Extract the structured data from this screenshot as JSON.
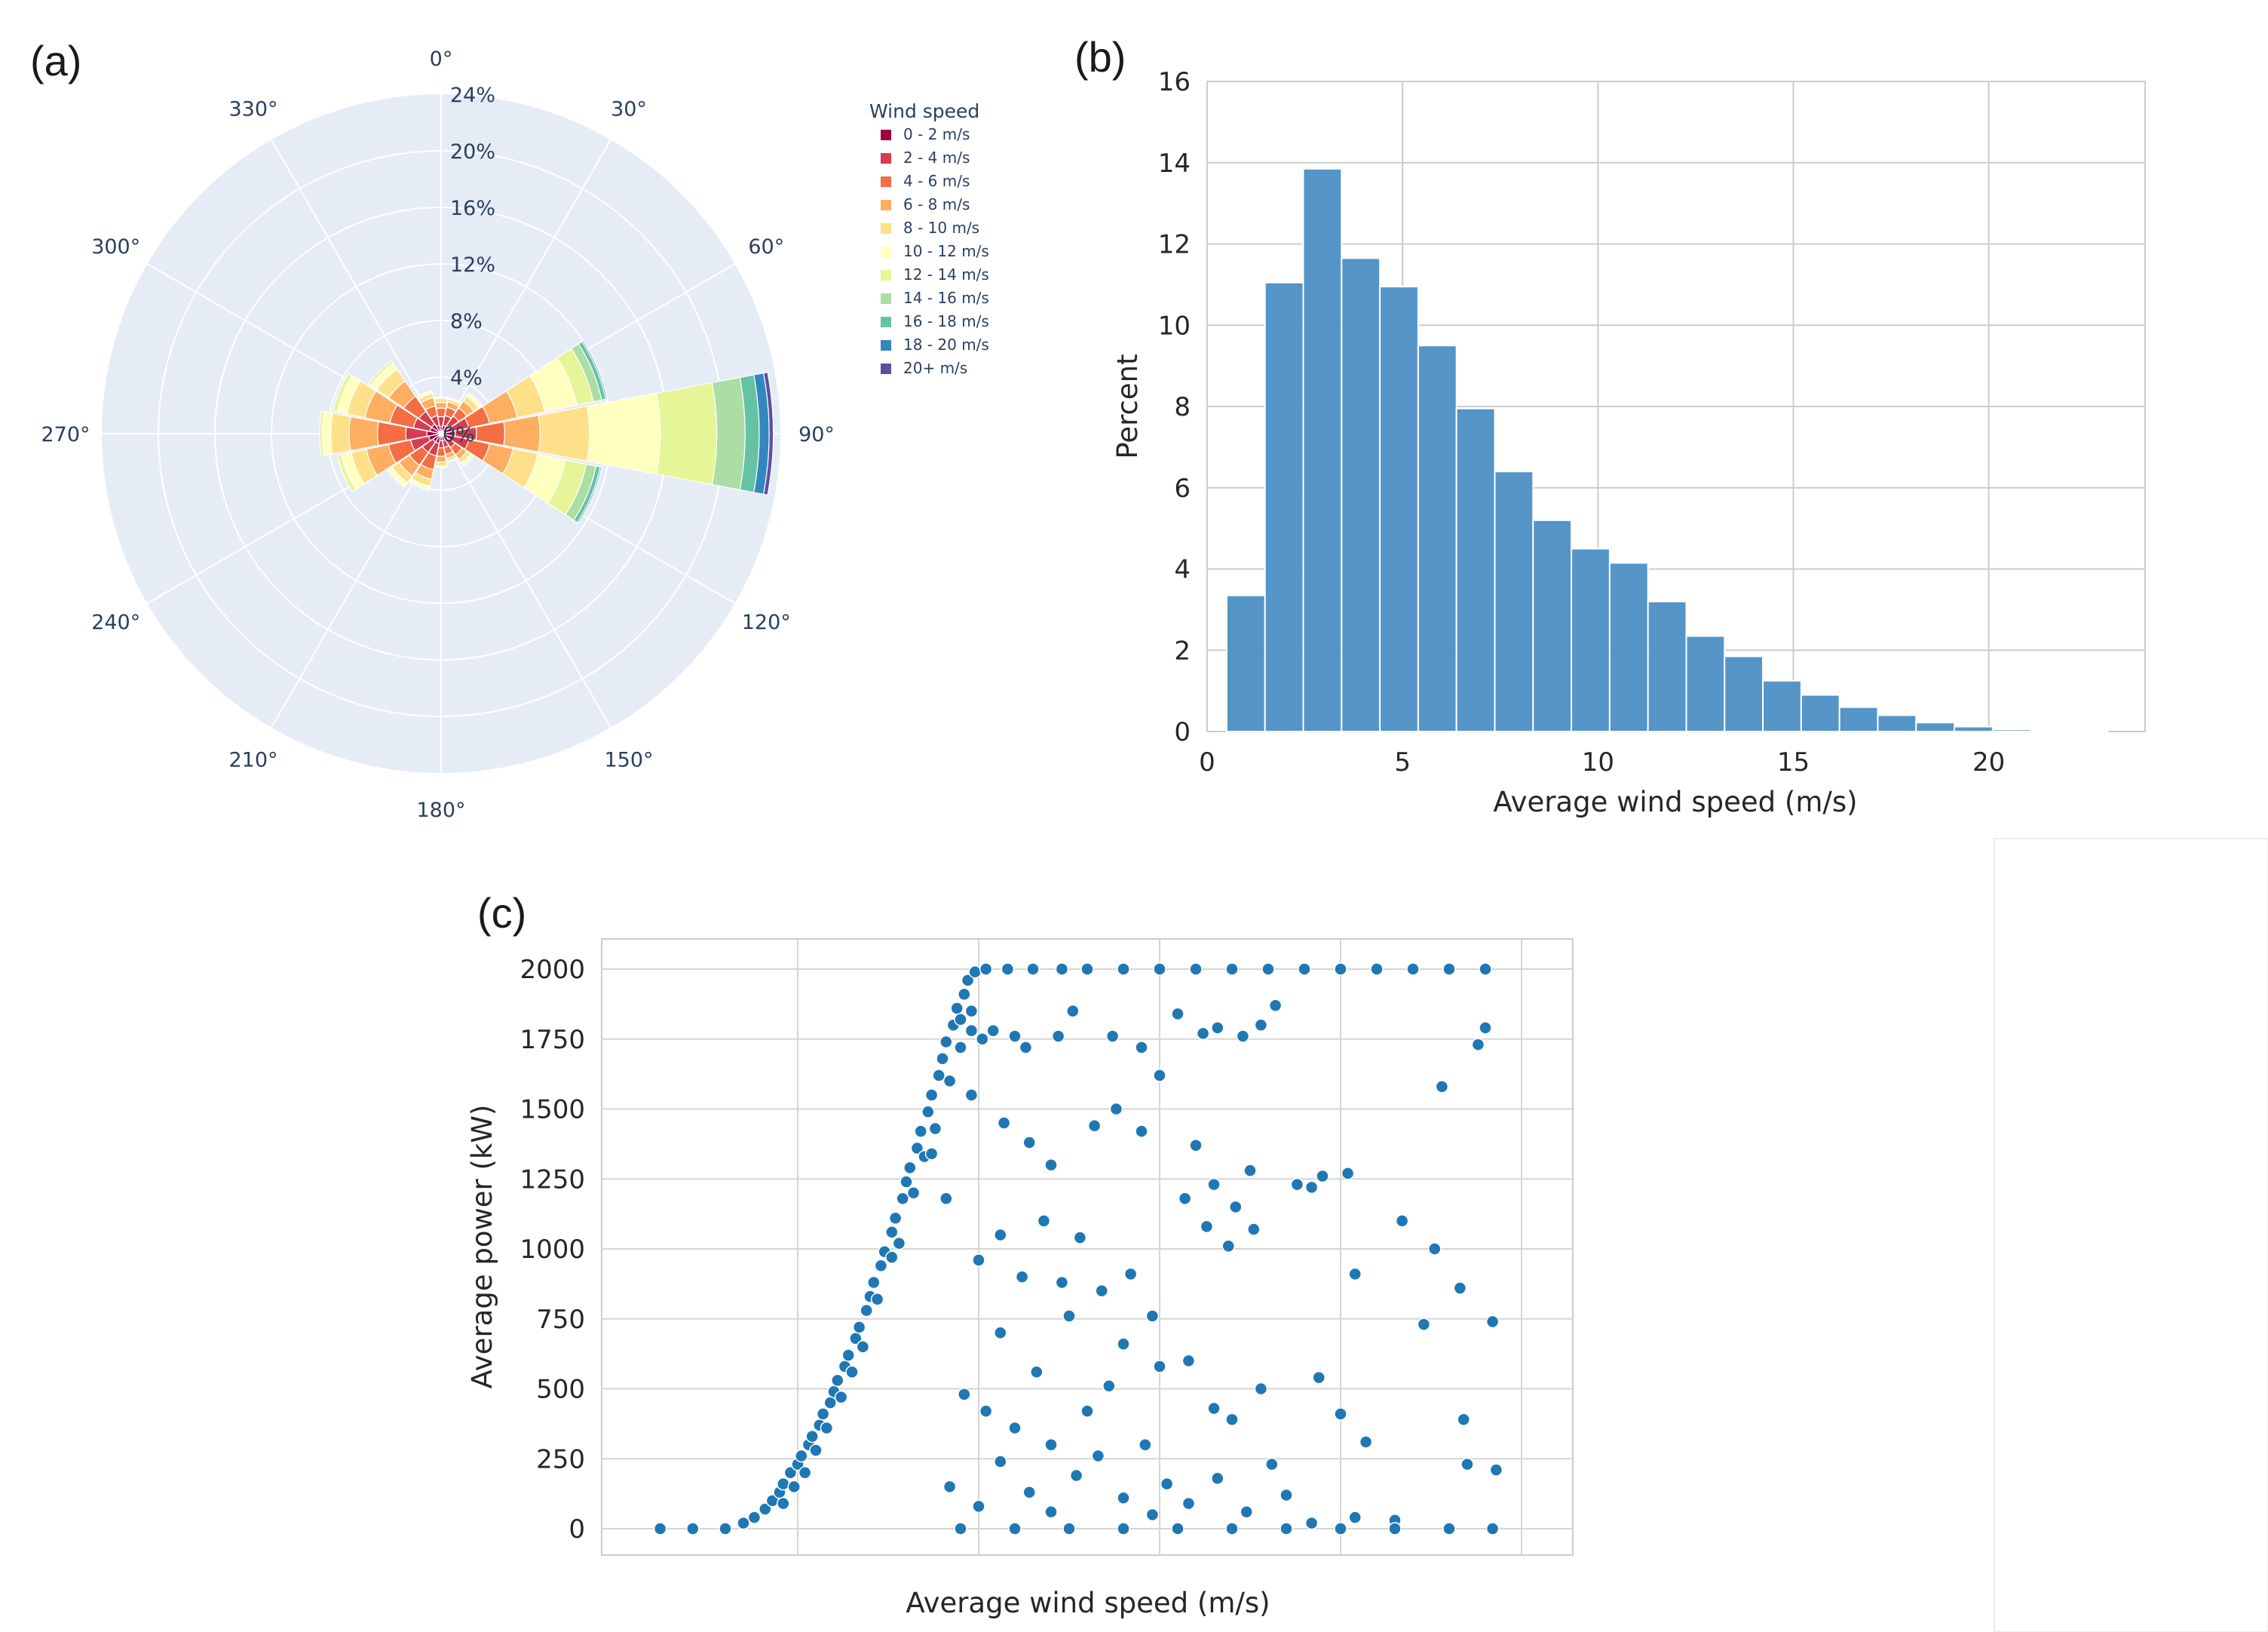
{
  "chart_data": [
    {
      "id": "a",
      "panel_label": "(a)",
      "type": "barpolar",
      "title": "",
      "radial_range": [
        0,
        24
      ],
      "radial_ticks": [
        "0%",
        "4%",
        "8%",
        "12%",
        "16%",
        "20%",
        "24%"
      ],
      "angular_ticks": [
        "0°",
        "30°",
        "60°",
        "90°",
        "120°",
        "150°",
        "180°",
        "210°",
        "240°",
        "270°",
        "300°",
        "330°"
      ],
      "legend": {
        "title": "Wind speed",
        "items": [
          "0 - 2 m/s",
          "2 - 4 m/s",
          "4 - 6 m/s",
          "6 - 8 m/s",
          "8 - 10 m/s",
          "10 - 12 m/s",
          "12 - 14 m/s",
          "14 - 16 m/s",
          "16 - 18 m/s",
          "18 - 20 m/s",
          "20+ m/s"
        ]
      },
      "colors": [
        "#9e0142",
        "#d53e4f",
        "#f46d43",
        "#fdae61",
        "#fee08b",
        "#ffffbf",
        "#e6f598",
        "#abdda4",
        "#66c2a5",
        "#3288bd",
        "#5e4fa2"
      ],
      "sector_width_deg": 22.5,
      "directions": [
        0,
        22.5,
        45,
        67.5,
        90,
        112.5,
        135,
        157.5,
        180,
        202.5,
        225,
        247.5,
        270,
        292.5,
        315,
        337.5
      ],
      "cumulative_percent": [
        [
          0.5,
          1.2,
          1.8,
          2.2,
          2.5,
          2.6,
          2.6,
          2.6,
          2.6,
          2.6,
          2.6
        ],
        [
          0.6,
          1.3,
          1.9,
          2.3,
          2.5,
          2.6,
          2.6,
          2.6,
          2.6,
          2.6,
          2.6
        ],
        [
          0.7,
          1.5,
          2.2,
          2.8,
          3.2,
          3.4,
          3.5,
          3.5,
          3.5,
          3.5,
          3.5
        ],
        [
          0.8,
          2.0,
          3.5,
          5.5,
          7.5,
          9.8,
          11.0,
          11.6,
          11.9,
          12.0,
          12.0
        ],
        [
          1.0,
          2.5,
          4.5,
          7.0,
          10.5,
          15.5,
          19.5,
          21.5,
          22.5,
          23.2,
          23.5
        ],
        [
          0.9,
          2.0,
          3.5,
          5.2,
          7.0,
          9.0,
          10.5,
          11.2,
          11.5,
          11.6,
          11.6
        ],
        [
          0.6,
          1.2,
          1.8,
          2.2,
          2.5,
          2.7,
          2.8,
          2.8,
          2.8,
          2.8,
          2.8
        ],
        [
          0.5,
          1.0,
          1.5,
          1.8,
          2.0,
          2.1,
          2.1,
          2.1,
          2.1,
          2.1,
          2.1
        ],
        [
          0.5,
          1.0,
          1.6,
          2.0,
          2.3,
          2.4,
          2.4,
          2.4,
          2.4,
          2.4,
          2.4
        ],
        [
          0.7,
          1.6,
          2.6,
          3.3,
          3.8,
          4.0,
          4.1,
          4.1,
          4.1,
          4.1,
          4.1
        ],
        [
          0.7,
          1.6,
          2.7,
          3.6,
          4.2,
          4.5,
          4.6,
          4.6,
          4.6,
          4.6,
          4.6
        ],
        [
          0.9,
          2.2,
          3.8,
          5.4,
          6.5,
          7.2,
          7.5,
          7.5,
          7.5,
          7.5,
          7.5
        ],
        [
          1.0,
          2.5,
          4.5,
          6.5,
          7.8,
          8.4,
          8.6,
          8.6,
          8.6,
          8.6,
          8.6
        ],
        [
          0.8,
          2.0,
          3.7,
          5.5,
          6.8,
          7.5,
          7.8,
          7.8,
          7.8,
          7.8,
          7.8
        ],
        [
          0.8,
          1.9,
          3.2,
          4.5,
          5.5,
          6.0,
          6.2,
          6.2,
          6.2,
          6.2,
          6.2
        ],
        [
          0.6,
          1.3,
          2.0,
          2.6,
          2.9,
          3.1,
          3.1,
          3.1,
          3.1,
          3.1,
          3.1
        ]
      ]
    },
    {
      "id": "b",
      "panel_label": "(b)",
      "type": "bar",
      "title": "",
      "xlabel": "Average wind speed (m/s)",
      "ylabel": "Percent",
      "xlim": [
        0,
        24
      ],
      "ylim": [
        0,
        16
      ],
      "xticks": [
        0,
        5,
        10,
        15,
        20
      ],
      "yticks": [
        0,
        2,
        4,
        6,
        8,
        10,
        12,
        14,
        16
      ],
      "bin_start": 0.5,
      "bin_width": 0.98,
      "values": [
        3.35,
        11.05,
        13.85,
        11.65,
        10.95,
        9.5,
        7.95,
        6.4,
        5.2,
        4.5,
        4.15,
        3.2,
        2.35,
        1.85,
        1.25,
        0.9,
        0.6,
        0.4,
        0.22,
        0.12,
        0.05,
        0.02,
        0.01
      ],
      "color": "#4c8fc4"
    },
    {
      "id": "c",
      "panel_label": "(c)",
      "type": "scatter",
      "title": "",
      "xlabel": "Average wind speed (m/s)",
      "ylabel": "Average power (kW)",
      "xlim": [
        0,
        26
      ],
      "ylim": [
        0,
        2000
      ],
      "yticks": [
        0,
        250,
        500,
        750,
        1000,
        1250,
        1500,
        1750,
        2000
      ],
      "x_gridlines": [
        5,
        10,
        15,
        20,
        25
      ],
      "point_color": "#1f77b4",
      "points": [
        [
          1.2,
          0
        ],
        [
          2.1,
          0
        ],
        [
          3.0,
          0
        ],
        [
          3.5,
          20
        ],
        [
          3.8,
          40
        ],
        [
          4.1,
          70
        ],
        [
          4.3,
          100
        ],
        [
          4.5,
          130
        ],
        [
          4.6,
          160
        ],
        [
          4.8,
          200
        ],
        [
          5.0,
          230
        ],
        [
          5.1,
          260
        ],
        [
          5.3,
          300
        ],
        [
          5.4,
          330
        ],
        [
          5.6,
          370
        ],
        [
          5.7,
          410
        ],
        [
          5.9,
          450
        ],
        [
          6.0,
          490
        ],
        [
          6.1,
          530
        ],
        [
          6.3,
          580
        ],
        [
          6.4,
          620
        ],
        [
          6.6,
          680
        ],
        [
          6.7,
          720
        ],
        [
          6.9,
          780
        ],
        [
          7.0,
          830
        ],
        [
          7.1,
          880
        ],
        [
          7.3,
          940
        ],
        [
          7.4,
          990
        ],
        [
          7.6,
          1060
        ],
        [
          7.7,
          1110
        ],
        [
          7.9,
          1180
        ],
        [
          8.0,
          1240
        ],
        [
          8.1,
          1290
        ],
        [
          8.3,
          1360
        ],
        [
          8.4,
          1420
        ],
        [
          8.6,
          1490
        ],
        [
          8.7,
          1550
        ],
        [
          8.9,
          1620
        ],
        [
          9.0,
          1680
        ],
        [
          9.1,
          1740
        ],
        [
          9.3,
          1800
        ],
        [
          9.4,
          1860
        ],
        [
          9.6,
          1910
        ],
        [
          9.7,
          1960
        ],
        [
          9.9,
          1990
        ],
        [
          10.2,
          2000
        ],
        [
          10.8,
          2000
        ],
        [
          11.5,
          2000
        ],
        [
          12.3,
          2000
        ],
        [
          13.0,
          2000
        ],
        [
          14.0,
          2000
        ],
        [
          15.0,
          2000
        ],
        [
          16.0,
          2000
        ],
        [
          17.0,
          2000
        ],
        [
          18.0,
          2000
        ],
        [
          19.0,
          2000
        ],
        [
          20.0,
          2000
        ],
        [
          21.0,
          2000
        ],
        [
          22.0,
          2000
        ],
        [
          23.0,
          2000
        ],
        [
          24.0,
          2000
        ],
        [
          4.6,
          90
        ],
        [
          5.2,
          200
        ],
        [
          5.8,
          360
        ],
        [
          6.2,
          470
        ],
        [
          6.8,
          650
        ],
        [
          7.2,
          820
        ],
        [
          7.6,
          970
        ],
        [
          8.2,
          1200
        ],
        [
          8.8,
          1430
        ],
        [
          9.2,
          1600
        ],
        [
          9.8,
          1850
        ],
        [
          4.9,
          150
        ],
        [
          5.5,
          280
        ],
        [
          6.5,
          560
        ],
        [
          7.8,
          1020
        ],
        [
          8.5,
          1330
        ],
        [
          9.5,
          1720
        ],
        [
          9.5,
          1820
        ],
        [
          9.8,
          1780
        ],
        [
          10.1,
          1750
        ],
        [
          10.4,
          1780
        ],
        [
          11.0,
          1760
        ],
        [
          11.3,
          1720
        ],
        [
          12.2,
          1760
        ],
        [
          12.6,
          1850
        ],
        [
          13.7,
          1760
        ],
        [
          14.5,
          1720
        ],
        [
          15.5,
          1840
        ],
        [
          16.2,
          1770
        ],
        [
          16.6,
          1790
        ],
        [
          17.3,
          1760
        ],
        [
          17.8,
          1800
        ],
        [
          18.2,
          1870
        ],
        [
          23.8,
          1730
        ],
        [
          24.0,
          1790
        ],
        [
          9.8,
          1550
        ],
        [
          10.7,
          1450
        ],
        [
          11.4,
          1380
        ],
        [
          12.0,
          1300
        ],
        [
          13.2,
          1440
        ],
        [
          13.8,
          1500
        ],
        [
          14.5,
          1420
        ],
        [
          15.0,
          1620
        ],
        [
          16.0,
          1370
        ],
        [
          16.5,
          1230
        ],
        [
          17.1,
          1150
        ],
        [
          17.5,
          1280
        ],
        [
          18.8,
          1230
        ],
        [
          19.5,
          1260
        ],
        [
          22.8,
          1580
        ],
        [
          8.7,
          1340
        ],
        [
          9.1,
          1180
        ],
        [
          10.0,
          960
        ],
        [
          10.6,
          1050
        ],
        [
          11.2,
          900
        ],
        [
          11.8,
          1100
        ],
        [
          12.3,
          880
        ],
        [
          12.8,
          1040
        ],
        [
          13.4,
          850
        ],
        [
          14.2,
          910
        ],
        [
          14.8,
          760
        ],
        [
          15.7,
          1180
        ],
        [
          16.3,
          1080
        ],
        [
          16.9,
          1010
        ],
        [
          17.6,
          1070
        ],
        [
          19.2,
          1220
        ],
        [
          20.2,
          1270
        ],
        [
          21.7,
          1100
        ],
        [
          22.6,
          1000
        ],
        [
          23.3,
          860
        ],
        [
          20.4,
          910
        ],
        [
          9.6,
          480
        ],
        [
          10.2,
          420
        ],
        [
          10.6,
          700
        ],
        [
          11.0,
          360
        ],
        [
          11.6,
          560
        ],
        [
          12.0,
          300
        ],
        [
          12.5,
          760
        ],
        [
          13.0,
          420
        ],
        [
          13.6,
          510
        ],
        [
          14.0,
          660
        ],
        [
          14.6,
          300
        ],
        [
          15.0,
          580
        ],
        [
          15.8,
          600
        ],
        [
          16.5,
          430
        ],
        [
          17.0,
          390
        ],
        [
          17.8,
          500
        ],
        [
          18.1,
          230
        ],
        [
          19.4,
          540
        ],
        [
          20.0,
          410
        ],
        [
          20.7,
          310
        ],
        [
          22.3,
          730
        ],
        [
          24.2,
          740
        ],
        [
          23.4,
          390
        ],
        [
          9.2,
          150
        ],
        [
          10.0,
          80
        ],
        [
          10.6,
          240
        ],
        [
          11.4,
          130
        ],
        [
          12.0,
          60
        ],
        [
          12.7,
          190
        ],
        [
          13.3,
          260
        ],
        [
          14.0,
          110
        ],
        [
          14.8,
          50
        ],
        [
          15.2,
          160
        ],
        [
          15.8,
          90
        ],
        [
          16.6,
          180
        ],
        [
          17.4,
          60
        ],
        [
          18.5,
          120
        ],
        [
          19.2,
          20
        ],
        [
          20.4,
          40
        ],
        [
          21.5,
          30
        ],
        [
          23.5,
          230
        ],
        [
          24.3,
          210
        ],
        [
          9.5,
          0
        ],
        [
          11.0,
          0
        ],
        [
          12.5,
          0
        ],
        [
          14.0,
          0
        ],
        [
          15.5,
          0
        ],
        [
          17.0,
          0
        ],
        [
          18.5,
          0
        ],
        [
          20.0,
          0
        ],
        [
          21.5,
          0
        ],
        [
          23.0,
          0
        ],
        [
          24.2,
          0
        ]
      ]
    }
  ]
}
